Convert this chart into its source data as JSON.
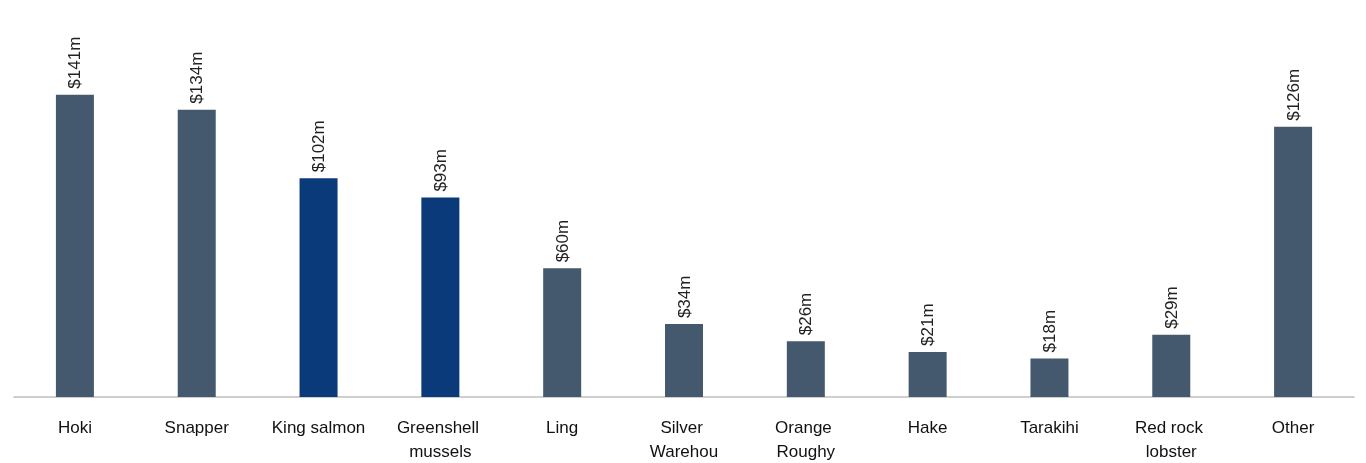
{
  "chart_data": {
    "type": "bar",
    "categories": [
      "Hoki",
      "Snapper",
      "King salmon",
      "Greenshell mussels",
      "Ling",
      "Silver Warehou",
      "Orange Roughy",
      "Hake",
      "Tarakihi",
      "Red rock lobster",
      "Other"
    ],
    "values": [
      141,
      134,
      102,
      93,
      60,
      34,
      26,
      21,
      18,
      29,
      126
    ],
    "colors": [
      "#44596d",
      "#44596d",
      "#0a3a7a",
      "#0a3a7a",
      "#44596d",
      "#44596d",
      "#44596d",
      "#44596d",
      "#44596d",
      "#44596d",
      "#44596d"
    ],
    "value_labels": [
      "$141m",
      "$134m",
      "$102m",
      "$93m",
      "$60m",
      "$34m",
      "$26m",
      "$21m",
      "$18m",
      "$29m",
      "$126m"
    ]
  }
}
